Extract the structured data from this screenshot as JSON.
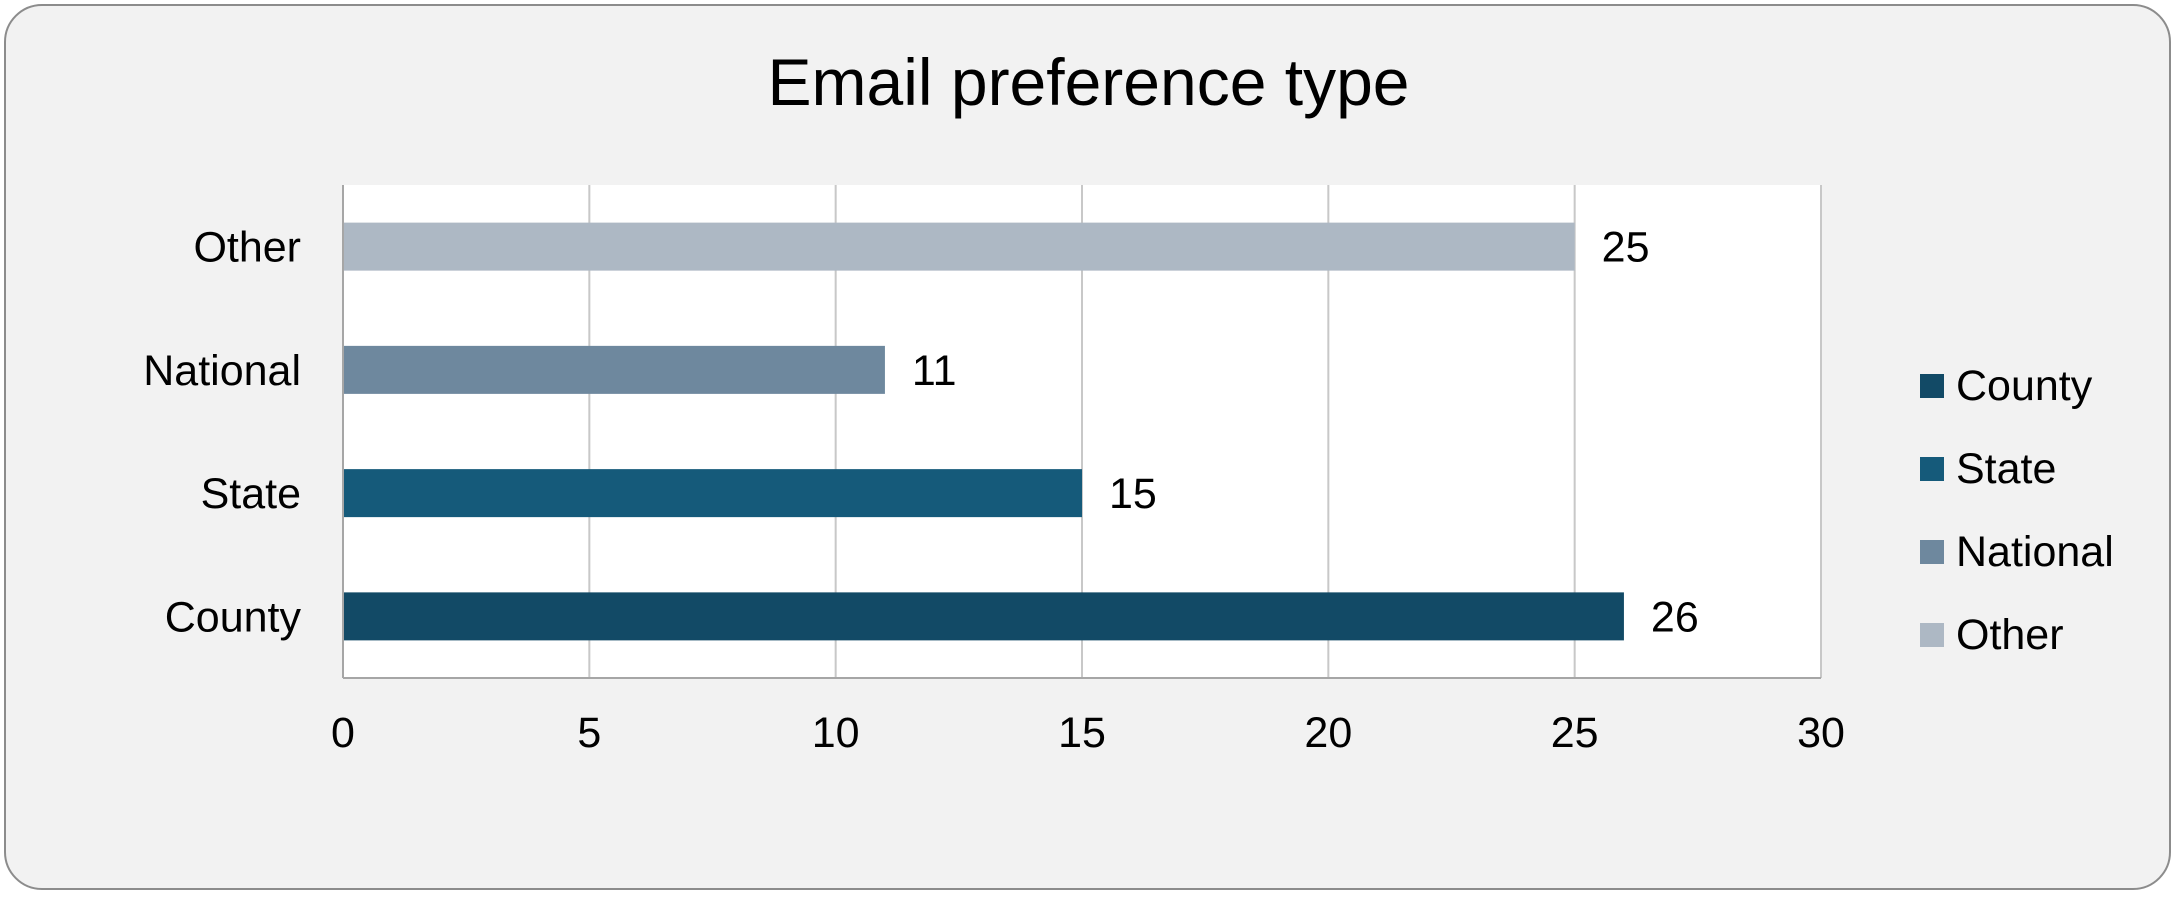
{
  "chart_data": {
    "type": "bar",
    "orientation": "horizontal",
    "title": "Email preference type",
    "categories": [
      "County",
      "State",
      "National",
      "Other"
    ],
    "values": [
      26,
      15,
      11,
      25
    ],
    "colors": [
      "#124a66",
      "#155a7a",
      "#6e889e",
      "#adb8c4"
    ],
    "xlim": [
      0,
      30
    ],
    "x_ticks": [
      0,
      5,
      10,
      15,
      20,
      25,
      30
    ],
    "xlabel": "",
    "ylabel": "",
    "grid": "vertical",
    "data_labels": true,
    "legend": {
      "position": "right",
      "entries": [
        "County",
        "State",
        "National",
        "Other"
      ]
    }
  }
}
